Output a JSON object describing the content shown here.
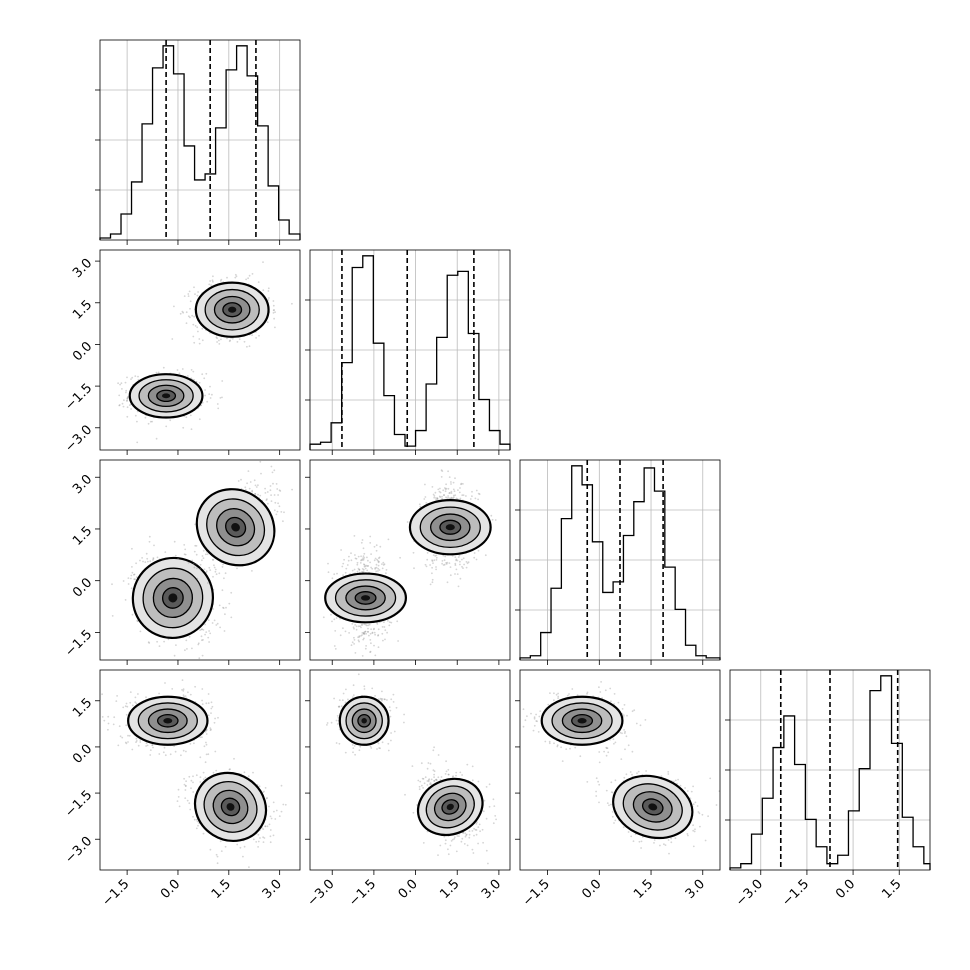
{
  "chart_data": {
    "type": "corner",
    "grid": true,
    "axes": {
      "p0": {
        "range": [
          -2.3,
          3.6
        ],
        "ticks": [
          -1.5,
          0.0,
          1.5,
          3.0
        ],
        "tick_labels": [
          "−1.5",
          "0.0",
          "1.5",
          "3.0"
        ]
      },
      "p1": {
        "range": [
          -3.8,
          3.4
        ],
        "ticks": [
          -3.0,
          -1.5,
          0.0,
          1.5,
          3.0
        ],
        "tick_labels": [
          "−3.0",
          "−1.5",
          "0.0",
          "1.5",
          "3.0"
        ]
      },
      "p2": {
        "range": [
          -2.3,
          3.5
        ],
        "ticks": [
          -1.5,
          0.0,
          1.5,
          3.0
        ],
        "tick_labels": [
          "−1.5",
          "0.0",
          "1.5",
          "3.0"
        ]
      },
      "p3": {
        "range": [
          -4.0,
          2.5
        ],
        "ticks": [
          -3.0,
          -1.5,
          0.0,
          1.5
        ],
        "tick_labels": [
          "−3.0",
          "−1.5",
          "0.0",
          "1.5"
        ]
      }
    },
    "histograms": [
      {
        "param": "p0",
        "bin_edges": [
          -2.3,
          -1.99,
          -1.68,
          -1.37,
          -1.06,
          -0.75,
          -0.44,
          -0.13,
          0.18,
          0.49,
          0.8,
          1.11,
          1.42,
          1.73,
          2.04,
          2.35,
          2.66,
          2.97,
          3.28,
          3.6
        ],
        "counts": [
          1,
          3,
          13,
          29,
          58,
          86,
          97,
          83,
          47,
          30,
          33,
          56,
          85,
          97,
          82,
          57,
          27,
          10,
          3
        ],
        "quantiles": [
          -0.35,
          0.95,
          2.3
        ]
      },
      {
        "param": "p1",
        "bin_edges": [
          -3.8,
          -3.42,
          -3.04,
          -2.66,
          -2.28,
          -1.9,
          -1.52,
          -1.14,
          -0.76,
          -0.38,
          0.0,
          0.38,
          0.76,
          1.14,
          1.52,
          1.9,
          2.28,
          2.66,
          3.04,
          3.4
        ],
        "counts": [
          3,
          4,
          14,
          45,
          94,
          100,
          55,
          28,
          8,
          2,
          10,
          34,
          58,
          90,
          92,
          60,
          26,
          10,
          3
        ],
        "quantiles": [
          -2.65,
          -0.3,
          2.1
        ]
      },
      {
        "param": "p2",
        "bin_edges": [
          -2.3,
          -2.0,
          -1.7,
          -1.4,
          -1.1,
          -0.8,
          -0.5,
          -0.2,
          0.1,
          0.4,
          0.7,
          1.0,
          1.3,
          1.6,
          1.9,
          2.2,
          2.5,
          2.8,
          3.1,
          3.5
        ],
        "counts": [
          1,
          2,
          13,
          34,
          67,
          92,
          83,
          56,
          32,
          37,
          59,
          75,
          91,
          80,
          44,
          24,
          7,
          2,
          1
        ],
        "quantiles": [
          -0.35,
          0.6,
          1.85
        ]
      },
      {
        "param": "p3",
        "bin_edges": [
          -4.0,
          -3.65,
          -3.3,
          -2.95,
          -2.6,
          -2.25,
          -1.9,
          -1.55,
          -1.2,
          -0.85,
          -0.5,
          -0.15,
          0.2,
          0.55,
          0.9,
          1.25,
          1.6,
          1.95,
          2.3,
          2.5
        ],
        "counts": [
          1,
          3,
          17,
          34,
          58,
          73,
          50,
          24,
          11,
          3,
          7,
          28,
          48,
          85,
          92,
          60,
          25,
          11,
          3
        ],
        "quantiles": [
          -2.35,
          -0.75,
          1.45
        ]
      }
    ],
    "pairs": [
      {
        "x": "p0",
        "y": "p1",
        "clusters": [
          {
            "center": [
              -0.35,
              -1.85
            ],
            "sigma": [
              0.55,
              0.4
            ],
            "rho": 0.0
          },
          {
            "center": [
              1.6,
              1.25
            ],
            "sigma": [
              0.55,
              0.5
            ],
            "rho": 0.0
          }
        ]
      },
      {
        "x": "p0",
        "y": "p2",
        "clusters": [
          {
            "center": [
              -0.15,
              -0.5
            ],
            "sigma": [
              0.6,
              0.6
            ],
            "rho": -0.3
          },
          {
            "center": [
              1.7,
              1.55
            ],
            "sigma": [
              0.55,
              0.6
            ],
            "rho": 0.55
          }
        ]
      },
      {
        "x": "p1",
        "y": "p2",
        "clusters": [
          {
            "center": [
              -1.8,
              -0.5
            ],
            "sigma": [
              0.45,
              0.6
            ],
            "rho": 0.0
          },
          {
            "center": [
              1.25,
              1.55
            ],
            "sigma": [
              0.5,
              0.6
            ],
            "rho": 0.0
          }
        ]
      },
      {
        "x": "p0",
        "y": "p3",
        "clusters": [
          {
            "center": [
              -0.3,
              0.85
            ],
            "sigma": [
              0.6,
              0.4
            ],
            "rho": 0.0
          },
          {
            "center": [
              1.55,
              -1.95
            ],
            "sigma": [
              0.55,
              0.55
            ],
            "rho": -0.2
          }
        ]
      },
      {
        "x": "p1",
        "y": "p3",
        "clusters": [
          {
            "center": [
              -1.85,
              0.85
            ],
            "sigma": [
              0.45,
              0.4
            ],
            "rho": 0.0
          },
          {
            "center": [
              1.25,
              -1.95
            ],
            "sigma": [
              0.5,
              0.55
            ],
            "rho": -0.2
          }
        ]
      },
      {
        "x": "p2",
        "y": "p3",
        "clusters": [
          {
            "center": [
              -0.5,
              0.85
            ],
            "sigma": [
              0.6,
              0.4
            ],
            "rho": 0.0
          },
          {
            "center": [
              1.55,
              -1.95
            ],
            "sigma": [
              0.6,
              0.5
            ],
            "rho": -0.2
          }
        ]
      }
    ]
  }
}
